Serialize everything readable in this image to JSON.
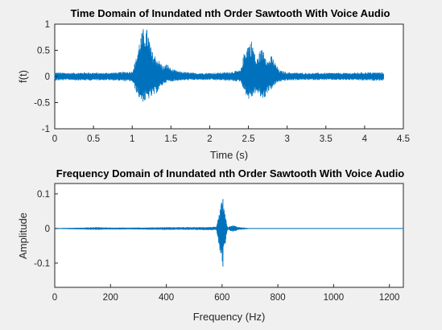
{
  "chart_data": [
    {
      "type": "line",
      "title": "Time Domain of Inundated  nth Order Sawtooth With Voice Audio",
      "xlabel": "Time (s)",
      "ylabel": "f(t)",
      "xlim": [
        0,
        4.5
      ],
      "ylim": [
        -1,
        1
      ],
      "xticks": [
        "0",
        "0.5",
        "1",
        "1.5",
        "2",
        "2.5",
        "3",
        "3.5",
        "4",
        "4.5"
      ],
      "yticks": [
        "-1",
        "-0.5",
        "0",
        "0.5",
        "1"
      ],
      "grid": false,
      "color": "#0072bd",
      "series": [
        {
          "envelope_x": [
            0,
            0.2,
            0.4,
            0.6,
            0.8,
            1.0,
            1.05,
            1.1,
            1.15,
            1.2,
            1.25,
            1.3,
            1.35,
            1.4,
            1.45,
            1.5,
            1.6,
            1.8,
            2.0,
            2.2,
            2.4,
            2.45,
            2.5,
            2.55,
            2.6,
            2.65,
            2.7,
            2.75,
            2.8,
            2.85,
            2.9,
            3.0,
            3.2,
            3.5,
            3.8,
            4.0,
            4.25
          ],
          "envelope_max": [
            0.08,
            0.07,
            0.08,
            0.07,
            0.08,
            0.1,
            0.35,
            0.75,
            0.95,
            0.9,
            0.5,
            0.4,
            0.3,
            0.2,
            0.25,
            0.15,
            0.1,
            0.07,
            0.07,
            0.08,
            0.12,
            0.5,
            0.65,
            0.7,
            0.3,
            0.5,
            0.55,
            0.3,
            0.4,
            0.25,
            0.12,
            0.08,
            0.07,
            0.07,
            0.07,
            0.08,
            0.08
          ],
          "envelope_min": [
            -0.08,
            -0.07,
            -0.08,
            -0.07,
            -0.08,
            -0.1,
            -0.3,
            -0.45,
            -0.5,
            -0.45,
            -0.4,
            -0.35,
            -0.25,
            -0.15,
            -0.1,
            -0.1,
            -0.08,
            -0.07,
            -0.07,
            -0.08,
            -0.1,
            -0.3,
            -0.45,
            -0.4,
            -0.3,
            -0.4,
            -0.45,
            -0.3,
            -0.25,
            -0.15,
            -0.1,
            -0.08,
            -0.07,
            -0.07,
            -0.07,
            -0.08,
            -0.08
          ]
        }
      ]
    },
    {
      "type": "line",
      "title": "Frequency Domain of Inundated  nth Order Sawtooth With Voice Audio",
      "xlabel": "Frequency (Hz)",
      "ylabel": "Amplitude",
      "xlim": [
        0,
        1250
      ],
      "ylim": [
        -0.17,
        0.13
      ],
      "xticks": [
        "0",
        "200",
        "400",
        "600",
        "800",
        "1000",
        "1200"
      ],
      "yticks": [
        "-0.1",
        "0",
        "0.1"
      ],
      "grid": false,
      "color": "#0072bd",
      "series": [
        {
          "spike_x": 603,
          "spike_max": 0.085,
          "spike_min": -0.11,
          "envelope_x": [
            0,
            100,
            150,
            200,
            300,
            400,
            500,
            580,
            600,
            620,
            640,
            660,
            700,
            800,
            1000,
            1250
          ],
          "envelope_max": [
            0.001,
            0.003,
            0.004,
            0.003,
            0.003,
            0.004,
            0.004,
            0.005,
            0.085,
            0.004,
            0.01,
            0.004,
            0.001,
            0.001,
            0.001,
            0.001
          ],
          "envelope_min": [
            -0.001,
            -0.003,
            -0.004,
            -0.003,
            -0.003,
            -0.004,
            -0.004,
            -0.005,
            -0.11,
            -0.004,
            -0.01,
            -0.004,
            -0.001,
            -0.001,
            -0.001,
            -0.001
          ]
        }
      ]
    }
  ]
}
